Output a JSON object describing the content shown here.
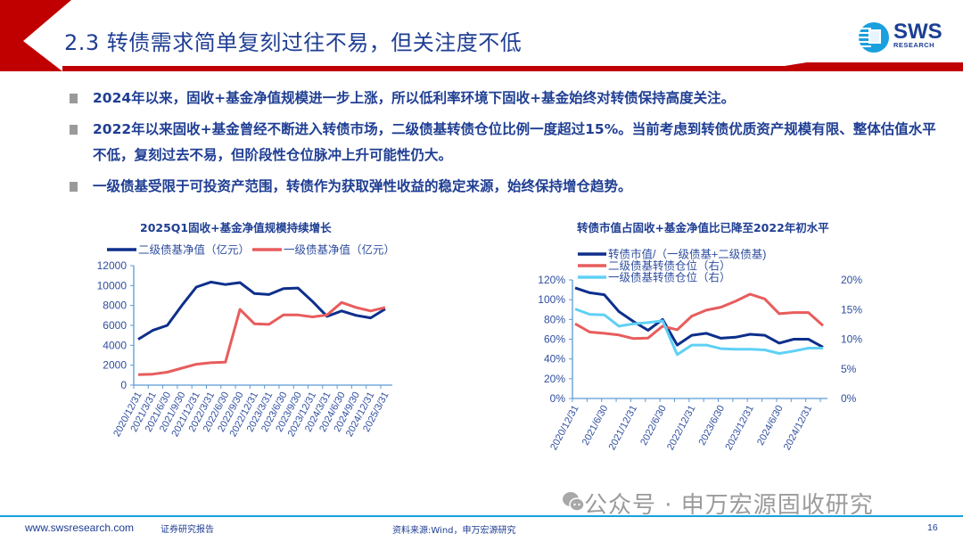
{
  "header": {
    "title": "2.3 转债需求简单复刻过往不易，但关注度不低",
    "logo_main": "SWS",
    "logo_sub": "RESEARCH",
    "accent_red": "#c00000",
    "title_blue": "#1f3e93"
  },
  "bullets": [
    {
      "text": "2024年以来，固收+基金净值规模进一步上涨，所以低利率环境下固收+基金始终对转债保持高度关注。"
    },
    {
      "text": "2022年以来固收+基金曾经不断进入转债市场，二级债基转债仓位比例一度超过15%。当前考虑到转债优质资产规模有限、整体估值水平不低，复刻过去不易，但阶段性仓位脉冲上升可能性仍大。"
    },
    {
      "text": "一级债基受限于可投资产范围，转债作为获取弹性收益的稳定来源，始终保持增仓趋势。"
    }
  ],
  "chart_data": [
    {
      "type": "line",
      "title": "2025Q1固收+基金净值规模持续增长",
      "x": [
        "2020/12/31",
        "2021/3/31",
        "2021/6/30",
        "2021/9/30",
        "2021/12/31",
        "2022/3/31",
        "2022/6/30",
        "2022/9/30",
        "2022/12/31",
        "2023/3/31",
        "2023/6/30",
        "2023/9/30",
        "2023/12/31",
        "2024/3/31",
        "2024/6/30",
        "2024/9/30",
        "2024/12/31",
        "2025/3/31"
      ],
      "series": [
        {
          "name": "二级债基净值（亿元）",
          "color": "#0d2f8c",
          "values": [
            4600,
            5500,
            6000,
            8000,
            9850,
            10350,
            10100,
            10300,
            9200,
            9100,
            9700,
            9750,
            8400,
            6900,
            7450,
            7000,
            6750,
            7650
          ]
        },
        {
          "name": "一级债基净值（亿元）",
          "color": "#e85c5c",
          "values": [
            1050,
            1100,
            1300,
            1700,
            2100,
            2250,
            2300,
            7600,
            6150,
            6100,
            7050,
            7050,
            6850,
            7050,
            8300,
            7800,
            7450,
            7800
          ]
        }
      ],
      "xlabel": "",
      "ylabel": "",
      "ylim": [
        0,
        12000
      ],
      "yticks": [
        "0",
        "2000",
        "4000",
        "6000",
        "8000",
        "10000",
        "12000"
      ],
      "legend_position": "top",
      "grid": false
    },
    {
      "type": "line",
      "title": "转债市值占固收+基金净值比已降至2022年初水平",
      "x": [
        "2020/12/31",
        "2021/3/31",
        "2021/6/30",
        "2021/9/30",
        "2021/12/31",
        "2022/3/31",
        "2022/6/30",
        "2022/9/30",
        "2022/12/31",
        "2023/3/31",
        "2023/6/30",
        "2023/9/30",
        "2023/12/31",
        "2024/3/31",
        "2024/6/30",
        "2024/9/30",
        "2024/12/31",
        "2025/3/31"
      ],
      "xtick_labels": [
        "2020/12/31",
        "2021/6/30",
        "2021/12/31",
        "2022/6/30",
        "2022/12/31",
        "2023/6/30",
        "2023/12/31",
        "2024/6/30",
        "2024/12/31"
      ],
      "series": [
        {
          "name": "转债市值/（一级债基+二级债基)",
          "axis": "left",
          "color": "#0d2f8c",
          "values": [
            112,
            107,
            105,
            88,
            78,
            69,
            80,
            54,
            64,
            66,
            61,
            62,
            65,
            64,
            56,
            60,
            60,
            52
          ]
        },
        {
          "name": "二级债基转债仓位（右）",
          "axis": "right",
          "color": "#e85c5c",
          "values": [
            12.6,
            11.2,
            11.0,
            10.7,
            10.1,
            10.2,
            12.2,
            11.6,
            13.9,
            14.9,
            15.4,
            16.4,
            17.6,
            16.8,
            14.3,
            14.5,
            14.5,
            12.3
          ]
        },
        {
          "name": "一级债基转债仓位（右）",
          "axis": "right",
          "color": "#5fd0f5",
          "values": [
            15.1,
            14.2,
            14.1,
            12.2,
            12.6,
            12.8,
            13.1,
            7.4,
            9.0,
            9.0,
            8.4,
            8.3,
            8.3,
            8.2,
            7.6,
            8.0,
            8.5,
            8.5
          ]
        }
      ],
      "ylim_left": [
        0,
        120
      ],
      "yticks_left": [
        "0%",
        "20%",
        "40%",
        "60%",
        "80%",
        "100%",
        "120%"
      ],
      "ylim_right": [
        0,
        20
      ],
      "yticks_right": [
        "0%",
        "5%",
        "10%",
        "15%",
        "20%"
      ],
      "legend_position": "top-left",
      "grid": false
    }
  ],
  "footer": {
    "url": "www.swsresearch.com",
    "doc_type": "证券研究报告",
    "source": "资料来源:Wind，申万宏源研究",
    "page": "16",
    "watermark": "公众号 · 申万宏源固收研究"
  }
}
